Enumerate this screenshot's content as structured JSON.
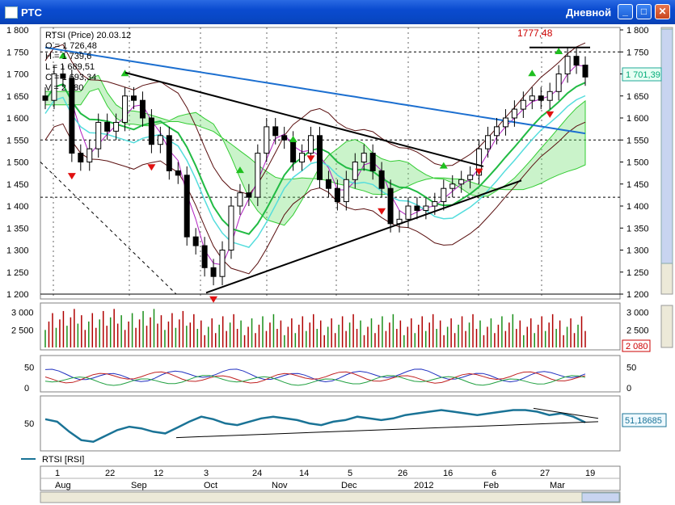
{
  "window": {
    "title": "РТС",
    "timeframe": "Дневной",
    "minimize_glyph": "_",
    "maximize_glyph": "□",
    "close_glyph": "✕"
  },
  "price_panel": {
    "info_lines": [
      "RTSI (Price) 20.03.12",
      "O = 1 726,48",
      "H = 1 739,6",
      "L = 1 689,51",
      "C = 1 693,34",
      "V = 2 080"
    ],
    "high_label": "1777,48",
    "last_price": "1 701,39",
    "y_ticks": [
      "1 800",
      "1 750",
      "1 700",
      "1 650",
      "1 600",
      "1 550",
      "1 500",
      "1 450",
      "1 400",
      "1 350",
      "1 300",
      "1 250",
      "1 200"
    ],
    "y_tick_values": [
      1800,
      1750,
      1700,
      1650,
      1600,
      1550,
      1500,
      1450,
      1400,
      1350,
      1300,
      1250,
      1200
    ]
  },
  "volume_panel": {
    "y_ticks": [
      "3 000",
      "2 500"
    ],
    "y_tick_values": [
      3000,
      2500
    ],
    "last_value": "2 080"
  },
  "osc_panel": {
    "y_ticks": [
      "50",
      "0"
    ],
    "y_tick_values": [
      50,
      0
    ]
  },
  "rsi_panel": {
    "y_ticks": [
      "50"
    ],
    "y_tick_values": [
      50
    ],
    "last_value": "51,18685",
    "legend": "RTSI [RSI]"
  },
  "date_axis": {
    "days": [
      "1",
      "22",
      "12",
      "3",
      "24",
      "14",
      "5",
      "26",
      "16",
      "6",
      "27",
      "19"
    ],
    "months": [
      "Aug",
      "Sep",
      "Oct",
      "Nov",
      "Dec",
      "2012",
      "Feb",
      "Mar"
    ]
  },
  "colors": {
    "up": "#1a8f1a",
    "down": "#b00000",
    "ma_blue": "#1c6fd0",
    "arrow_up": "#1fbf1f",
    "arrow_down": "#e01010",
    "rsi": "#1a7396",
    "cloud": "#33cc33"
  },
  "chart_data": [
    {
      "type": "candlestick",
      "title": "",
      "series_name": "RTSI (Price)",
      "ylim": [
        1200,
        1800
      ],
      "x_range": [
        "2011-08-01",
        "2012-03-20"
      ],
      "close_approx": [
        1640,
        1700,
        1690,
        1520,
        1500,
        1530,
        1590,
        1570,
        1590,
        1650,
        1640,
        1600,
        1540,
        1560,
        1480,
        1470,
        1330,
        1310,
        1260,
        1240,
        1300,
        1400,
        1430,
        1420,
        1520,
        1580,
        1560,
        1550,
        1500,
        1520,
        1560,
        1460,
        1440,
        1410,
        1460,
        1500,
        1520,
        1480,
        1440,
        1360,
        1370,
        1400,
        1390,
        1400,
        1410,
        1440,
        1450,
        1460,
        1470,
        1530,
        1560,
        1580,
        1600,
        1620,
        1640,
        1650,
        1640,
        1660,
        1700,
        1740,
        1720,
        1693
      ],
      "last": {
        "date": "20.03.12",
        "open": 1726.48,
        "high": 1739.6,
        "low": 1689.51,
        "close": 1693.34,
        "volume": 2080
      },
      "period_high": 1777.48,
      "last_marker": 1701.39,
      "grid": true
    },
    {
      "type": "bar",
      "series_name": "Volume",
      "ylim": [
        2000,
        3200
      ],
      "last": 2080
    },
    {
      "type": "line",
      "series_name": "RTSI [RSI]",
      "ylim": [
        20,
        80
      ],
      "values": [
        55,
        52,
        40,
        30,
        28,
        35,
        42,
        46,
        44,
        40,
        38,
        45,
        52,
        58,
        55,
        50,
        48,
        52,
        56,
        58,
        56,
        54,
        50,
        48,
        52,
        54,
        58,
        56,
        54,
        56,
        60,
        62,
        64,
        66,
        64,
        62,
        60,
        62,
        64,
        66,
        66,
        64,
        60,
        62,
        58,
        51.19
      ],
      "last": 51.18685
    }
  ]
}
